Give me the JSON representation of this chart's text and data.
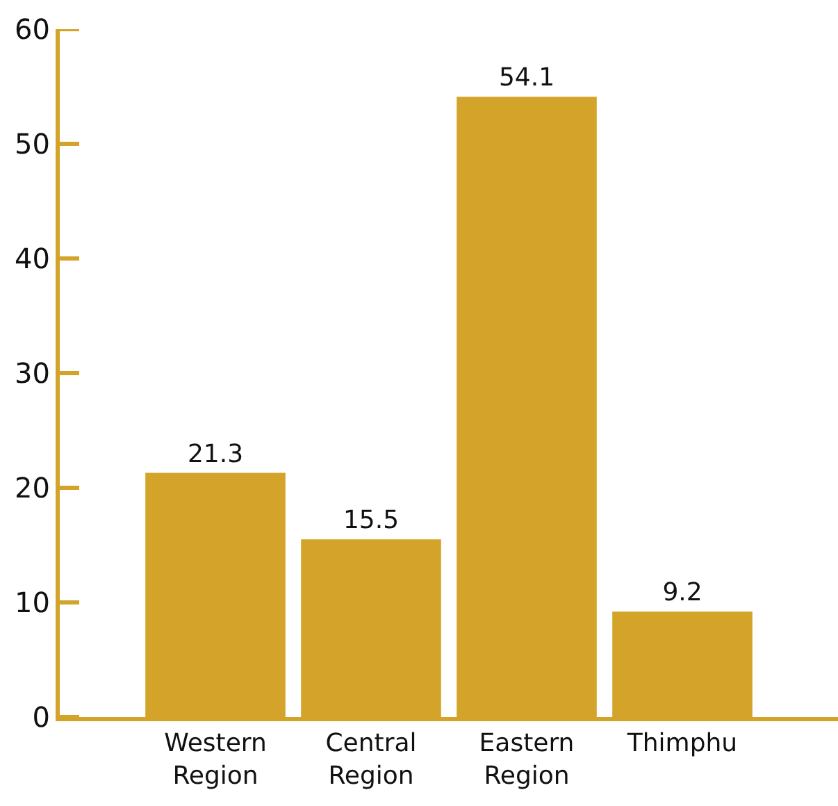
{
  "chart_data": {
    "type": "bar",
    "categories": [
      "Western Region",
      "Central Region",
      "Eastern Region",
      "Thimphu"
    ],
    "values": [
      21.3,
      15.5,
      54.1,
      9.2
    ],
    "color": "#d4a42a",
    "ylim": [
      0,
      60
    ],
    "yticks": [
      0,
      10,
      20,
      30,
      40,
      50,
      60
    ],
    "data_labels": true
  }
}
